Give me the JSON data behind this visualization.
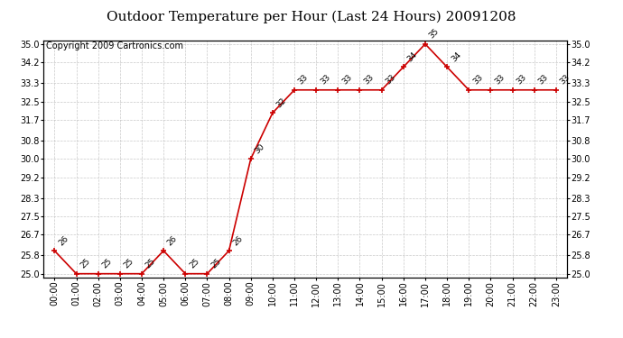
{
  "title": "Outdoor Temperature per Hour (Last 24 Hours) 20091208",
  "copyright": "Copyright 2009 Cartronics.com",
  "hours": [
    "00:00",
    "01:00",
    "02:00",
    "03:00",
    "04:00",
    "05:00",
    "06:00",
    "07:00",
    "08:00",
    "09:00",
    "10:00",
    "11:00",
    "12:00",
    "13:00",
    "14:00",
    "15:00",
    "16:00",
    "17:00",
    "18:00",
    "19:00",
    "20:00",
    "21:00",
    "22:00",
    "23:00"
  ],
  "temperatures": [
    26,
    25,
    25,
    25,
    25,
    26,
    25,
    25,
    26,
    30,
    32,
    33,
    33,
    33,
    33,
    33,
    34,
    35,
    34,
    33,
    33,
    33,
    33,
    33
  ],
  "line_color": "#cc0000",
  "marker": "+",
  "bg_color": "#ffffff",
  "grid_color": "#bbbbbb",
  "ylim_min": 25.0,
  "ylim_max": 35.0,
  "yticks": [
    25.0,
    25.8,
    26.7,
    27.5,
    28.3,
    29.2,
    30.0,
    30.8,
    31.7,
    32.5,
    33.3,
    34.2,
    35.0
  ],
  "title_fontsize": 11,
  "annotation_fontsize": 6.5,
  "copyright_fontsize": 7,
  "tick_fontsize": 7
}
